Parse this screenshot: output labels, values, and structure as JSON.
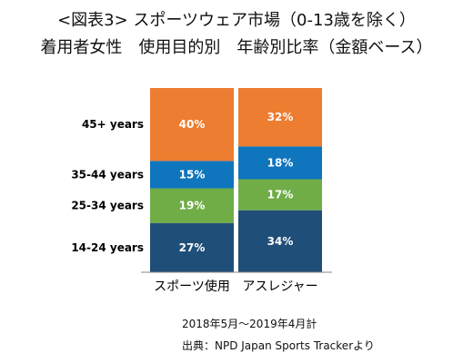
{
  "title": "<図表3> スポーツウェア市場（0-13歳を除く）",
  "subtitle": "着用者女性　使用目的別　年齢別比率（金額ベース）",
  "period": "2018年5月～2019年4月計",
  "source": "出典：NPD Japan Sports Trackerより",
  "colors": {
    "14-24 years": "#1f4e79",
    "25-34 years": "#70ad47",
    "35-44 years": "#0f75bd",
    "45+ years": "#ed7d31"
  },
  "chart_data": {
    "type": "bar",
    "stacked": true,
    "unit": "%",
    "categories": [
      "スポーツ使用",
      "アスレジャー"
    ],
    "series": [
      {
        "name": "14-24 years",
        "values": [
          27,
          34
        ],
        "labels": [
          "27%",
          "34%"
        ]
      },
      {
        "name": "25-34 years",
        "values": [
          19,
          17
        ],
        "labels": [
          "19%",
          "17%"
        ]
      },
      {
        "name": "35-44 years",
        "values": [
          15,
          18
        ],
        "labels": [
          "15%",
          "18%"
        ]
      },
      {
        "name": "45+ years",
        "values": [
          40,
          32
        ],
        "labels": [
          "40%",
          "32%"
        ]
      }
    ],
    "ylim": [
      0,
      101
    ],
    "legend": "left",
    "grid": false
  }
}
